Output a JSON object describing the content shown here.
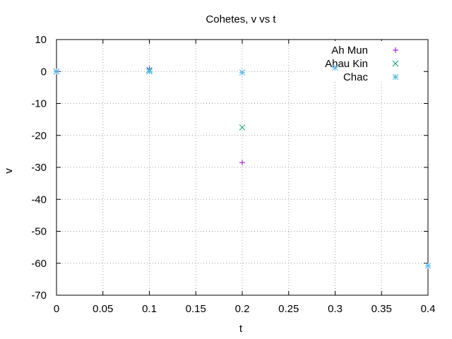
{
  "chart_data": {
    "type": "scatter",
    "title": "Cohetes, v vs t",
    "xlabel": "t",
    "ylabel": "v",
    "xlim": [
      0,
      0.4
    ],
    "ylim": [
      -70,
      10
    ],
    "xticks": [
      "0",
      "0.05",
      "0.1",
      "0.15",
      "0.2",
      "0.25",
      "0.3",
      "0.35",
      "0.4"
    ],
    "yticks": [
      "10",
      "0",
      "-10",
      "-20",
      "-30",
      "-40",
      "-50",
      "-60",
      "-70"
    ],
    "grid": true,
    "legend_position": "top-right",
    "series": [
      {
        "name": "Ah Mun",
        "marker": "plus",
        "color": "#9400d3",
        "x": [
          0,
          0.1,
          0.2
        ],
        "y": [
          0,
          0.8,
          -28.5
        ]
      },
      {
        "name": "Ahau Kin",
        "marker": "cross",
        "color": "#009e73",
        "x": [
          0,
          0.1,
          0.2
        ],
        "y": [
          0,
          0.5,
          -17.5
        ]
      },
      {
        "name": "Chac",
        "marker": "star",
        "color": "#56b4e9",
        "x": [
          0,
          0.1,
          0.2,
          0.3,
          0.4
        ],
        "y": [
          0,
          0,
          -0.3,
          1.2,
          -60.8
        ]
      }
    ]
  }
}
